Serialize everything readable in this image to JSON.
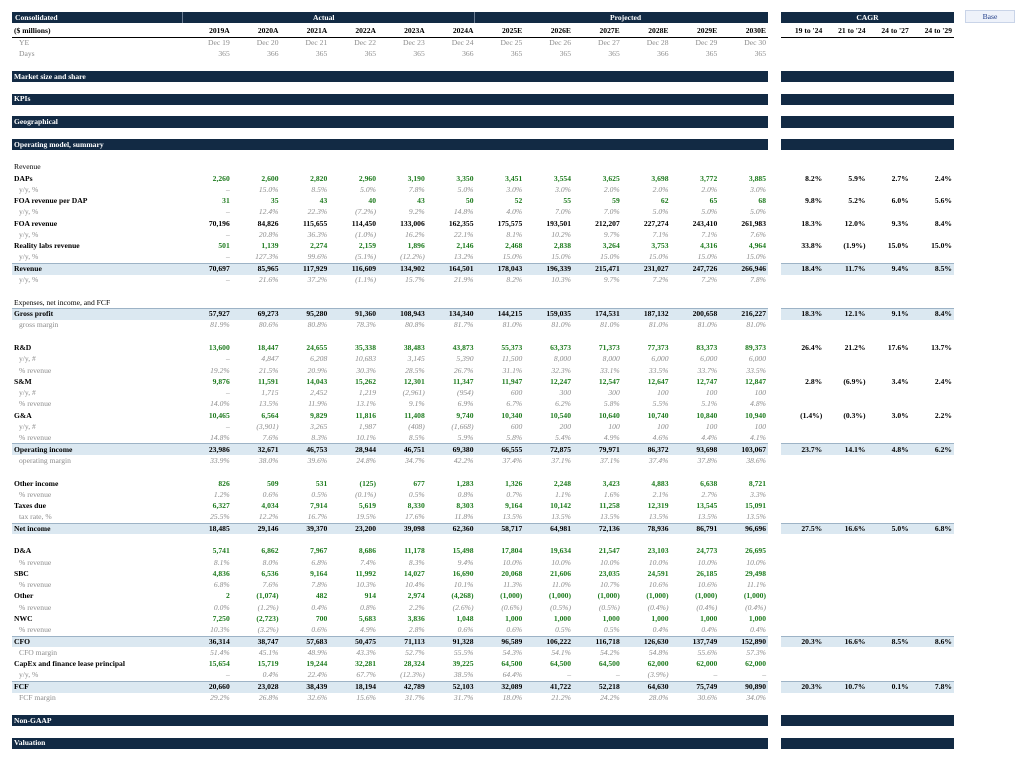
{
  "header": {
    "title": "Consolidated",
    "actual_label": "Actual",
    "projected_label": "Projected",
    "cagr_label": "CAGR",
    "scenario": "Base",
    "units": "($ millions)",
    "ye_label": "YE",
    "days_label": "Days"
  },
  "years": [
    "2019A",
    "2020A",
    "2021A",
    "2022A",
    "2023A",
    "2024A",
    "2025E",
    "2026E",
    "2027E",
    "2028E",
    "2029E",
    "2030E"
  ],
  "ye": [
    "Dec 19",
    "Dec 20",
    "Dec 21",
    "Dec 22",
    "Dec 23",
    "Dec 24",
    "Dec 25",
    "Dec 26",
    "Dec 27",
    "Dec 28",
    "Dec 29",
    "Dec 30"
  ],
  "days": [
    "365",
    "366",
    "365",
    "365",
    "365",
    "366",
    "365",
    "365",
    "365",
    "366",
    "365",
    "365"
  ],
  "cagr_cols": [
    "19 to '24",
    "21 to '24",
    "24 to '27",
    "24 to '29"
  ],
  "sections": {
    "market": "Market size and share",
    "kpis": "KPIs",
    "geo": "Geographical",
    "opmodel": "Operating model, summary",
    "revenue": "Revenue",
    "expenses": "Expenses, net income, and FCF",
    "nongaap": "Non-GAAP",
    "valuation": "Valuation"
  },
  "rows": [
    {
      "label": "DAPs",
      "style": "bold",
      "green": true,
      "v": [
        "2,260",
        "2,600",
        "2,820",
        "2,960",
        "3,190",
        "3,350",
        "3,451",
        "3,554",
        "3,625",
        "3,698",
        "3,772",
        "3,885"
      ],
      "c": [
        "8.2%",
        "5.9%",
        "2.7%",
        "2.4%"
      ]
    },
    {
      "label": "y/y, %",
      "style": "sub",
      "v": [
        "–",
        "15.0%",
        "8.5%",
        "5.0%",
        "7.8%",
        "5.0%",
        "3.0%",
        "3.0%",
        "2.0%",
        "2.0%",
        "2.0%",
        "3.0%"
      ]
    },
    {
      "label": "FOA revenue per DAP",
      "style": "bold",
      "green": true,
      "v": [
        "31",
        "35",
        "43",
        "40",
        "43",
        "50",
        "52",
        "55",
        "59",
        "62",
        "65",
        "68"
      ],
      "c": [
        "9.8%",
        "5.2%",
        "6.0%",
        "5.6%"
      ]
    },
    {
      "label": "y/y, %",
      "style": "sub",
      "v": [
        "–",
        "12.4%",
        "22.3%",
        "(7.2%)",
        "9.2%",
        "14.8%",
        "4.0%",
        "7.0%",
        "7.0%",
        "5.0%",
        "5.0%",
        "5.0%"
      ]
    },
    {
      "label": "FOA revenue",
      "style": "bold",
      "v": [
        "70,196",
        "84,826",
        "115,655",
        "114,450",
        "133,006",
        "162,355",
        "175,575",
        "193,501",
        "212,207",
        "227,274",
        "243,410",
        "261,983"
      ],
      "c": [
        "18.3%",
        "12.0%",
        "9.3%",
        "8.4%"
      ]
    },
    {
      "label": "y/y, %",
      "style": "sub",
      "v": [
        "–",
        "20.8%",
        "36.3%",
        "(1.0%)",
        "16.2%",
        "22.1%",
        "8.1%",
        "10.2%",
        "9.7%",
        "7.1%",
        "7.1%",
        "7.6%"
      ]
    },
    {
      "label": "Reality labs revenue",
      "style": "bold",
      "green": true,
      "v": [
        "501",
        "1,139",
        "2,274",
        "2,159",
        "1,896",
        "2,146",
        "2,468",
        "2,838",
        "3,264",
        "3,753",
        "4,316",
        "4,964"
      ],
      "c": [
        "33.8%",
        "(1.9%)",
        "15.0%",
        "15.0%"
      ]
    },
    {
      "label": "y/y, %",
      "style": "sub",
      "v": [
        "–",
        "127.3%",
        "99.6%",
        "(5.1%)",
        "(12.2%)",
        "13.2%",
        "15.0%",
        "15.0%",
        "15.0%",
        "15.0%",
        "15.0%",
        "15.0%"
      ]
    },
    {
      "label": "Revenue",
      "style": "hi",
      "v": [
        "70,697",
        "85,965",
        "117,929",
        "116,609",
        "134,902",
        "164,501",
        "178,043",
        "196,339",
        "215,471",
        "231,027",
        "247,726",
        "266,946"
      ],
      "c": [
        "18.4%",
        "11.7%",
        "9.4%",
        "8.5%"
      ]
    },
    {
      "label": "y/y, %",
      "style": "sub",
      "v": [
        "–",
        "21.6%",
        "37.2%",
        "(1.1%)",
        "15.7%",
        "21.9%",
        "8.2%",
        "10.3%",
        "9.7%",
        "7.2%",
        "7.2%",
        "7.8%"
      ]
    },
    {
      "label": "",
      "style": "blank"
    },
    {
      "label": "Expenses, net income, and FCF",
      "style": "section",
      "key": "expenses"
    },
    {
      "label": "Gross profit",
      "style": "hi",
      "v": [
        "57,927",
        "69,273",
        "95,280",
        "91,360",
        "108,943",
        "134,340",
        "144,215",
        "159,035",
        "174,531",
        "187,132",
        "200,658",
        "216,227"
      ],
      "c": [
        "18.3%",
        "12.1%",
        "9.1%",
        "8.4%"
      ]
    },
    {
      "label": "gross margin",
      "style": "sub",
      "v": [
        "81.9%",
        "80.6%",
        "80.8%",
        "78.3%",
        "80.8%",
        "81.7%",
        "81.0%",
        "81.0%",
        "81.0%",
        "81.0%",
        "81.0%",
        "81.0%"
      ]
    },
    {
      "label": "",
      "style": "blank"
    },
    {
      "label": "R&D",
      "style": "bold",
      "green": true,
      "v": [
        "13,600",
        "18,447",
        "24,655",
        "35,338",
        "38,483",
        "43,873",
        "55,373",
        "63,373",
        "71,373",
        "77,373",
        "83,373",
        "89,373"
      ],
      "c": [
        "26.4%",
        "21.2%",
        "17.6%",
        "13.7%"
      ]
    },
    {
      "label": "y/y, #",
      "style": "sub",
      "v": [
        "–",
        "4,847",
        "6,208",
        "10,683",
        "3,145",
        "5,390",
        "11,500",
        "8,000",
        "8,000",
        "6,000",
        "6,000",
        "6,000"
      ]
    },
    {
      "label": "% revenue",
      "style": "sub",
      "v": [
        "19.2%",
        "21.5%",
        "20.9%",
        "30.3%",
        "28.5%",
        "26.7%",
        "31.1%",
        "32.3%",
        "33.1%",
        "33.5%",
        "33.7%",
        "33.5%"
      ]
    },
    {
      "label": "S&M",
      "style": "bold",
      "green": true,
      "v": [
        "9,876",
        "11,591",
        "14,043",
        "15,262",
        "12,301",
        "11,347",
        "11,947",
        "12,247",
        "12,547",
        "12,647",
        "12,747",
        "12,847"
      ],
      "c": [
        "2.8%",
        "(6.9%)",
        "3.4%",
        "2.4%"
      ]
    },
    {
      "label": "y/y, #",
      "style": "sub",
      "v": [
        "–",
        "1,715",
        "2,452",
        "1,219",
        "(2,961)",
        "(954)",
        "600",
        "300",
        "300",
        "100",
        "100",
        "100"
      ]
    },
    {
      "label": "% revenue",
      "style": "sub",
      "v": [
        "14.0%",
        "13.5%",
        "11.9%",
        "13.1%",
        "9.1%",
        "6.9%",
        "6.7%",
        "6.2%",
        "5.8%",
        "5.5%",
        "5.1%",
        "4.8%"
      ]
    },
    {
      "label": "G&A",
      "style": "bold",
      "green": true,
      "v": [
        "10,465",
        "6,564",
        "9,829",
        "11,816",
        "11,408",
        "9,740",
        "10,340",
        "10,540",
        "10,640",
        "10,740",
        "10,840",
        "10,940"
      ],
      "c": [
        "(1.4%)",
        "(0.3%)",
        "3.0%",
        "2.2%"
      ]
    },
    {
      "label": "y/y, #",
      "style": "sub",
      "v": [
        "–",
        "(3,901)",
        "3,265",
        "1,987",
        "(408)",
        "(1,668)",
        "600",
        "200",
        "100",
        "100",
        "100",
        "100"
      ]
    },
    {
      "label": "% revenue",
      "style": "sub",
      "v": [
        "14.8%",
        "7.6%",
        "8.3%",
        "10.1%",
        "8.5%",
        "5.9%",
        "5.8%",
        "5.4%",
        "4.9%",
        "4.6%",
        "4.4%",
        "4.1%"
      ]
    },
    {
      "label": "Operating income",
      "style": "hi",
      "v": [
        "23,986",
        "32,671",
        "46,753",
        "28,944",
        "46,751",
        "69,380",
        "66,555",
        "72,875",
        "79,971",
        "86,372",
        "93,698",
        "103,067"
      ],
      "c": [
        "23.7%",
        "14.1%",
        "4.8%",
        "6.2%"
      ]
    },
    {
      "label": "operating margin",
      "style": "sub",
      "v": [
        "33.9%",
        "38.0%",
        "39.6%",
        "24.8%",
        "34.7%",
        "42.2%",
        "37.4%",
        "37.1%",
        "37.1%",
        "37.4%",
        "37.8%",
        "38.6%"
      ]
    },
    {
      "label": "",
      "style": "blank"
    },
    {
      "label": "Other income",
      "style": "bold",
      "green": true,
      "v": [
        "826",
        "509",
        "531",
        "(125)",
        "677",
        "1,283",
        "1,326",
        "2,248",
        "3,423",
        "4,883",
        "6,638",
        "8,721"
      ]
    },
    {
      "label": "% revenue",
      "style": "sub",
      "v": [
        "1.2%",
        "0.6%",
        "0.5%",
        "(0.1%)",
        "0.5%",
        "0.8%",
        "0.7%",
        "1.1%",
        "1.6%",
        "2.1%",
        "2.7%",
        "3.3%"
      ]
    },
    {
      "label": "Taxes due",
      "style": "bold",
      "green": true,
      "v": [
        "6,327",
        "4,034",
        "7,914",
        "5,619",
        "8,330",
        "8,303",
        "9,164",
        "10,142",
        "11,258",
        "12,319",
        "13,545",
        "15,091"
      ]
    },
    {
      "label": "tax rate, %",
      "style": "sub",
      "v": [
        "25.5%",
        "12.2%",
        "16.7%",
        "19.5%",
        "17.6%",
        "11.8%",
        "13.5%",
        "13.5%",
        "13.5%",
        "13.5%",
        "13.5%",
        "13.5%"
      ]
    },
    {
      "label": "Net income",
      "style": "hi",
      "v": [
        "18,485",
        "29,146",
        "39,370",
        "23,200",
        "39,098",
        "62,360",
        "58,717",
        "64,981",
        "72,136",
        "78,936",
        "86,791",
        "96,696"
      ],
      "c": [
        "27.5%",
        "16.6%",
        "5.0%",
        "6.8%"
      ]
    },
    {
      "label": "",
      "style": "blank"
    },
    {
      "label": "D&A",
      "style": "bold",
      "green": true,
      "v": [
        "5,741",
        "6,862",
        "7,967",
        "8,686",
        "11,178",
        "15,498",
        "17,804",
        "19,634",
        "21,547",
        "23,103",
        "24,773",
        "26,695"
      ]
    },
    {
      "label": "% revenue",
      "style": "sub",
      "v": [
        "8.1%",
        "8.0%",
        "6.8%",
        "7.4%",
        "8.3%",
        "9.4%",
        "10.0%",
        "10.0%",
        "10.0%",
        "10.0%",
        "10.0%",
        "10.0%"
      ]
    },
    {
      "label": "SBC",
      "style": "bold",
      "green": true,
      "v": [
        "4,836",
        "6,536",
        "9,164",
        "11,992",
        "14,027",
        "16,690",
        "20,068",
        "21,606",
        "23,035",
        "24,591",
        "26,185",
        "29,498"
      ]
    },
    {
      "label": "% revenue",
      "style": "sub",
      "v": [
        "6.8%",
        "7.6%",
        "7.8%",
        "10.3%",
        "10.4%",
        "10.1%",
        "11.3%",
        "11.0%",
        "10.7%",
        "10.6%",
        "10.6%",
        "11.1%"
      ]
    },
    {
      "label": "Other",
      "style": "bold",
      "green": true,
      "v": [
        "2",
        "(1,074)",
        "482",
        "914",
        "2,974",
        "(4,268)",
        "(1,000)",
        "(1,000)",
        "(1,000)",
        "(1,000)",
        "(1,000)",
        "(1,000)"
      ]
    },
    {
      "label": "% revenue",
      "style": "sub",
      "v": [
        "0.0%",
        "(1.2%)",
        "0.4%",
        "0.8%",
        "2.2%",
        "(2.6%)",
        "(0.6%)",
        "(0.5%)",
        "(0.5%)",
        "(0.4%)",
        "(0.4%)",
        "(0.4%)"
      ]
    },
    {
      "label": "NWC",
      "style": "bold",
      "green": true,
      "v": [
        "7,250",
        "(2,723)",
        "700",
        "5,683",
        "3,836",
        "1,048",
        "1,000",
        "1,000",
        "1,000",
        "1,000",
        "1,000",
        "1,000"
      ]
    },
    {
      "label": "% revenue",
      "style": "sub",
      "v": [
        "10.3%",
        "(3.2%)",
        "0.6%",
        "4.9%",
        "2.8%",
        "0.6%",
        "0.6%",
        "0.5%",
        "0.5%",
        "0.4%",
        "0.4%",
        "0.4%"
      ]
    },
    {
      "label": "CFO",
      "style": "hi",
      "v": [
        "36,314",
        "38,747",
        "57,683",
        "50,475",
        "71,113",
        "91,328",
        "96,589",
        "106,222",
        "116,718",
        "126,630",
        "137,749",
        "152,890"
      ],
      "c": [
        "20.3%",
        "16.6%",
        "8.5%",
        "8.6%"
      ]
    },
    {
      "label": "CFO margin",
      "style": "sub",
      "v": [
        "51.4%",
        "45.1%",
        "48.9%",
        "43.3%",
        "52.7%",
        "55.5%",
        "54.3%",
        "54.1%",
        "54.2%",
        "54.8%",
        "55.6%",
        "57.3%"
      ]
    },
    {
      "label": "CapEx and finance lease principal",
      "style": "bold",
      "green": true,
      "v": [
        "15,654",
        "15,719",
        "19,244",
        "32,281",
        "28,324",
        "39,225",
        "64,500",
        "64,500",
        "64,500",
        "62,000",
        "62,000",
        "62,000"
      ]
    },
    {
      "label": "y/y, %",
      "style": "sub",
      "v": [
        "–",
        "0.4%",
        "22.4%",
        "67.7%",
        "(12.3%)",
        "38.5%",
        "64.4%",
        "–",
        "–",
        "(3.9%)",
        "–",
        "–"
      ]
    },
    {
      "label": "FCF",
      "style": "hi",
      "v": [
        "20,660",
        "23,028",
        "38,439",
        "18,194",
        "42,789",
        "52,103",
        "32,089",
        "41,722",
        "52,218",
        "64,630",
        "75,749",
        "90,890"
      ],
      "c": [
        "20.3%",
        "10.7%",
        "0.1%",
        "7.8%"
      ]
    },
    {
      "label": "FCF margin",
      "style": "sub",
      "v": [
        "29.2%",
        "26.8%",
        "32.6%",
        "15.6%",
        "31.7%",
        "31.7%",
        "18.0%",
        "21.2%",
        "24.2%",
        "28.0%",
        "30.6%",
        "34.0%"
      ]
    }
  ]
}
